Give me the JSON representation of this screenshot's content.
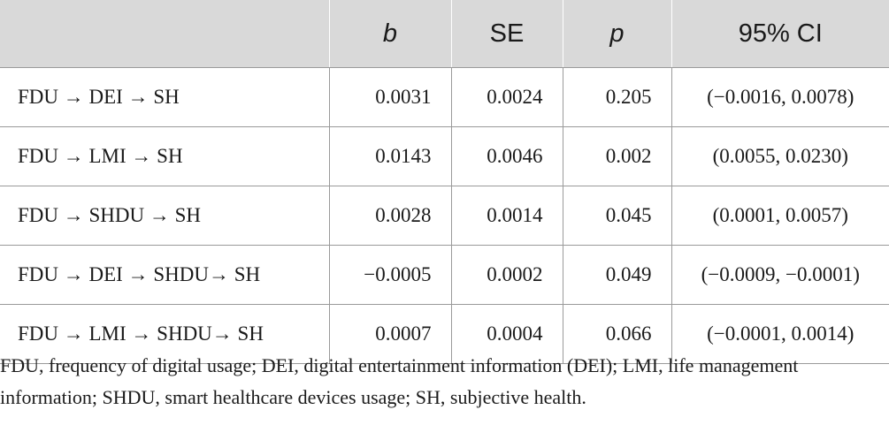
{
  "table": {
    "headers": [
      "",
      "b",
      "SE",
      "p",
      "95% CI"
    ],
    "rows": [
      {
        "path": "FDU → DEI → SH",
        "b": "0.0031",
        "se": "0.0024",
        "p": "0.205",
        "ci": "(−0.0016, 0.0078)"
      },
      {
        "path": "FDU → LMI → SH",
        "b": "0.0143",
        "se": "0.0046",
        "p": "0.002",
        "ci": "(0.0055, 0.0230)"
      },
      {
        "path": "FDU → SHDU → SH",
        "b": "0.0028",
        "se": "0.0014",
        "p": "0.045",
        "ci": "(0.0001, 0.0057)"
      },
      {
        "path": "FDU → DEI → SHDU→ SH",
        "b": "−0.0005",
        "se": "0.0002",
        "p": "0.049",
        "ci": "(−0.0009, −0.0001)"
      },
      {
        "path": "FDU → LMI → SHDU→ SH",
        "b": "0.0007",
        "se": "0.0004",
        "p": "0.066",
        "ci": "(−0.0001, 0.0014)"
      }
    ]
  },
  "footnote": "FDU, frequency of digital usage; DEI, digital entertainment information (DEI); LMI, life management information; SHDU, smart healthcare devices usage; SH, subjective health."
}
